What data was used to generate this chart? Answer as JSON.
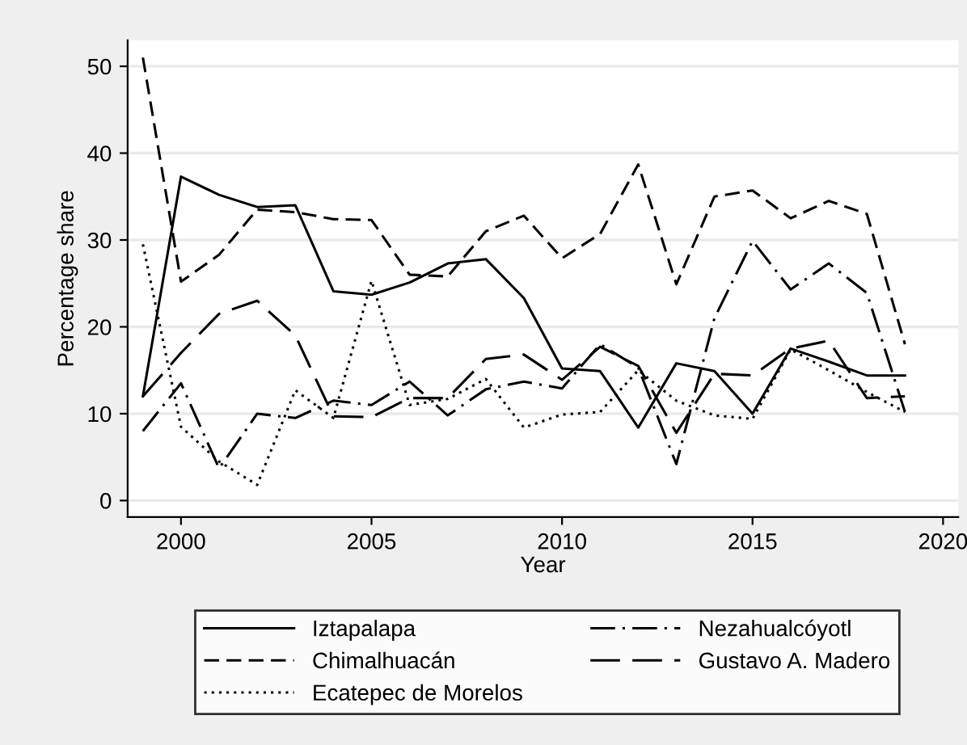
{
  "chart_data": {
    "type": "line",
    "xlabel": "Year",
    "ylabel": "Percentage share",
    "x": [
      1999,
      2000,
      2001,
      2002,
      2003,
      2004,
      2005,
      2006,
      2007,
      2008,
      2009,
      2010,
      2011,
      2012,
      2013,
      2014,
      2015,
      2016,
      2017,
      2018,
      2019
    ],
    "series": [
      {
        "name": "Iztapalapa",
        "color": "#000000",
        "line_style": "solid",
        "values": [
          12,
          37.3,
          35.2,
          33.8,
          34,
          24.1,
          23.7,
          25.1,
          27.3,
          27.8,
          23.3,
          15.2,
          14.9,
          8.4,
          15.8,
          14.9,
          10,
          17.5,
          16,
          14.4,
          14.4
        ]
      },
      {
        "name": "Chimalhuacán",
        "color": "#000000",
        "line_style": "dashed",
        "values": [
          51,
          25.2,
          28.3,
          33.5,
          33.2,
          32.4,
          32.3,
          26,
          25.8,
          31,
          32.8,
          27.9,
          30.7,
          38.7,
          24.9,
          35,
          35.7,
          32.5,
          34.5,
          33,
          18
        ]
      },
      {
        "name": "Ecatepec de Morelos",
        "color": "#000000",
        "line_style": "dotted",
        "values": [
          29.5,
          8.5,
          4.5,
          1.8,
          12.7,
          9.5,
          25.3,
          11,
          11.7,
          14,
          8.4,
          9.9,
          10.2,
          15,
          11.5,
          9.8,
          9.4,
          17.4,
          15,
          12.5,
          10.2
        ]
      },
      {
        "name": "Nezahualcóyotl",
        "color": "#000000",
        "line_style": "dashdot",
        "values": [
          8,
          13.5,
          3.7,
          10,
          9.5,
          11.5,
          11,
          13.7,
          9.8,
          12.8,
          13.7,
          12.9,
          18,
          15.3,
          4.2,
          21,
          29.9,
          24.3,
          27.3,
          23.9,
          10.2
        ]
      },
      {
        "name": "Gustavo A. Madero",
        "color": "#000000",
        "line_style": "longdash",
        "values": [
          12,
          17,
          21.5,
          23,
          19,
          9.7,
          9.6,
          11.8,
          11.8,
          16.3,
          16.8,
          13.9,
          17.7,
          15.5,
          7.8,
          14.6,
          14.4,
          17.5,
          18.4,
          11.8,
          12
        ]
      }
    ],
    "xlim": [
      1998.6,
      2020.4
    ],
    "xticks": [
      2000,
      2005,
      2010,
      2015,
      2020
    ],
    "ylim": [
      -1.9,
      53
    ],
    "yticks": [
      0,
      10,
      20,
      30,
      40,
      50
    ],
    "grid": "y",
    "legend": "bottom",
    "marker": "none"
  }
}
